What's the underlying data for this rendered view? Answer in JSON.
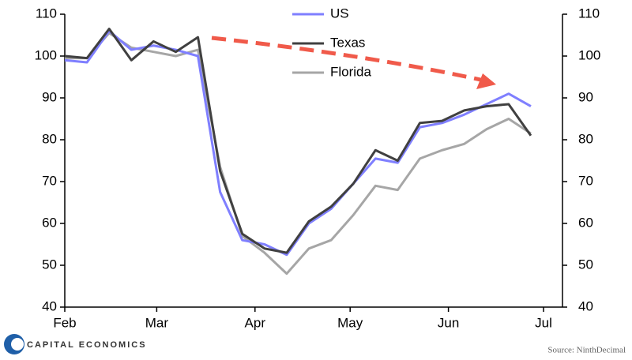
{
  "chart_data": {
    "type": "line",
    "x": [
      0,
      7,
      14,
      21,
      28,
      35,
      42,
      49,
      56,
      63,
      70,
      77,
      84,
      91,
      98,
      105,
      112,
      119,
      126,
      133,
      140,
      147
    ],
    "series": [
      {
        "name": "US",
        "color": "#7f7fff",
        "values": [
          99,
          98.5,
          106,
          101.5,
          102.5,
          101.5,
          100,
          67.5,
          56,
          55,
          52.5,
          60,
          63.5,
          69.5,
          75.5,
          74.5,
          83,
          84,
          86,
          88.5,
          91,
          88
        ]
      },
      {
        "name": "Texas",
        "color": "#404040",
        "values": [
          100,
          99.5,
          106.5,
          99,
          103.5,
          101,
          104.5,
          72.5,
          57.5,
          54,
          53,
          60.5,
          64,
          69.5,
          77.5,
          75,
          84,
          84.5,
          87,
          88,
          88.5,
          81
        ]
      },
      {
        "name": "Florida",
        "color": "#a6a6a6",
        "values": [
          99.5,
          99.5,
          105.5,
          102,
          101,
          100,
          101.5,
          73.5,
          57,
          53,
          48,
          54,
          56,
          62,
          69,
          68,
          75.5,
          77.5,
          79,
          82.5,
          85,
          81.5
        ]
      }
    ],
    "xlim": [
      0,
      151
    ],
    "xticks": [
      {
        "value": 0,
        "label": "Feb"
      },
      {
        "value": 29,
        "label": "Mar"
      },
      {
        "value": 60,
        "label": "Apr"
      },
      {
        "value": 90,
        "label": "May"
      },
      {
        "value": 121,
        "label": "Jun"
      },
      {
        "value": 151,
        "label": "Jul"
      }
    ],
    "ylim": [
      40,
      110
    ],
    "yticks": [
      40,
      50,
      60,
      70,
      80,
      90,
      100,
      110
    ],
    "y2lim": [
      40,
      110
    ],
    "y2ticks": [
      40,
      50,
      60,
      70,
      80,
      90,
      100,
      110
    ],
    "grid": false,
    "legend": "top",
    "logo": "CAPITAL ECONOMICS",
    "source": "Source: NinthDecimal"
  }
}
